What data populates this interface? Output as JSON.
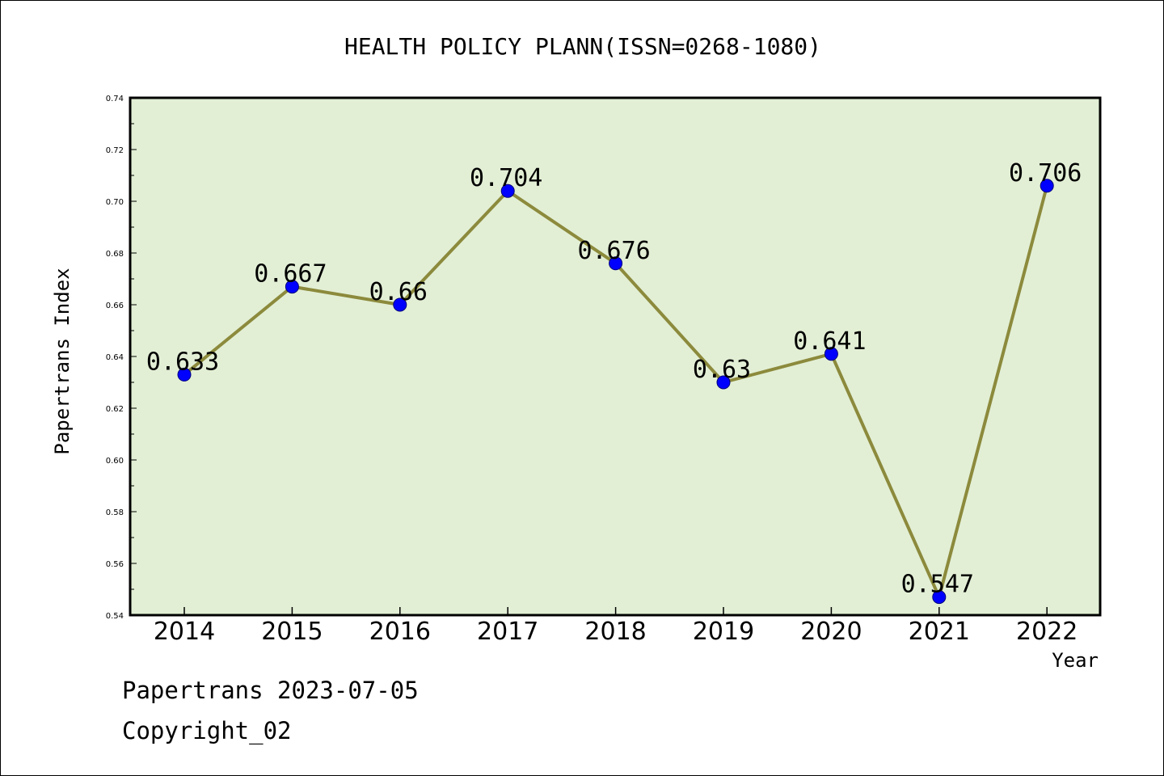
{
  "chart_data": {
    "type": "line",
    "title": "HEALTH POLICY PLANN(ISSN=0268-1080)",
    "xlabel": "Year",
    "ylabel": "Papertrans Index",
    "categories": [
      "2014",
      "2015",
      "2016",
      "2017",
      "2018",
      "2019",
      "2020",
      "2021",
      "2022"
    ],
    "series": [
      {
        "values": [
          0.633,
          0.667,
          0.66,
          0.704,
          0.676,
          0.63,
          0.641,
          0.547,
          0.706
        ],
        "labels": [
          "0.633",
          "0.667",
          "0.66",
          "0.704",
          "0.676",
          "0.63",
          "0.641",
          "0.547",
          "0.706"
        ]
      }
    ],
    "ylim": [
      0.54,
      0.74
    ],
    "yticks": [
      "0.54",
      "0.56",
      "0.58",
      "0.60",
      "0.62",
      "0.64",
      "0.66",
      "0.68",
      "0.70",
      "0.72",
      "0.74"
    ],
    "grid": false,
    "colors": {
      "plot_background": "#e2efd5",
      "line": "#8c8a3c",
      "marker": "#0000ff"
    }
  },
  "footer": {
    "line1": "Papertrans 2023-07-05",
    "line2": "Copyright_02"
  }
}
